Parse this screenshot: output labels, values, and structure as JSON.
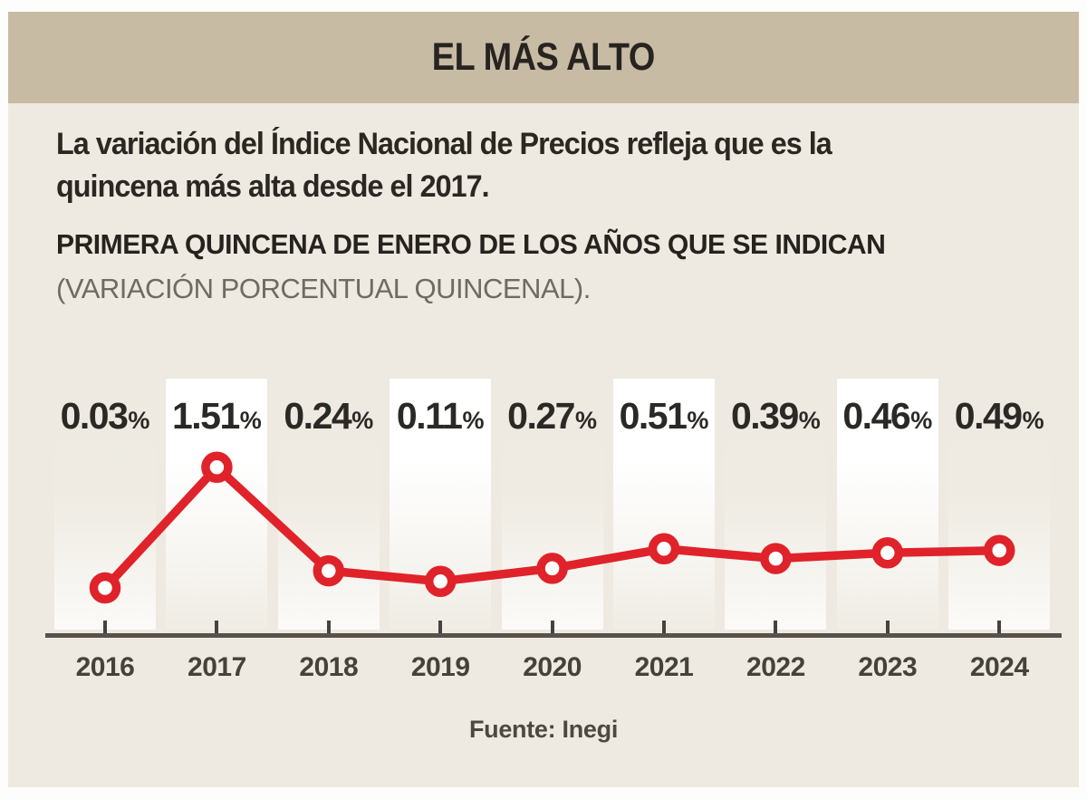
{
  "header": {
    "title": "EL MÁS ALTO"
  },
  "intro": {
    "lines": [
      "La variación del Índice Nacional de Precios refleja que es la",
      "quincena más alta desde el 2017."
    ]
  },
  "chart_header": {
    "subtitle": "PRIMERA QUINCENA DE ENERO DE LOS AÑOS QUE SE INDICAN",
    "note": "(VARIACIÓN PORCENTUAL QUINCENAL)."
  },
  "chart_data": {
    "type": "line",
    "categories": [
      "2016",
      "2017",
      "2018",
      "2019",
      "2020",
      "2021",
      "2022",
      "2023",
      "2024"
    ],
    "values": [
      0.03,
      1.51,
      0.24,
      0.11,
      0.27,
      0.51,
      0.39,
      0.46,
      0.49
    ],
    "unit": "%",
    "title": "EL MÁS ALTO",
    "xlabel": "",
    "ylabel": "",
    "ylim": [
      0,
      1.6
    ],
    "grid": false,
    "legend": false,
    "series_color": "#e0222a",
    "marker": "open-circle",
    "highlighted_columns": [
      "2017",
      "2019",
      "2021",
      "2023"
    ],
    "value_labels_position": "top",
    "source": "Fuente: Inegi"
  },
  "colors": {
    "header_band": "#c8bba4",
    "body_background": "#eeeae1",
    "line_red": "#e0222a",
    "axis_gray": "#57534c",
    "text_dark": "#2b2723",
    "text_gray": "#6e6a64"
  }
}
